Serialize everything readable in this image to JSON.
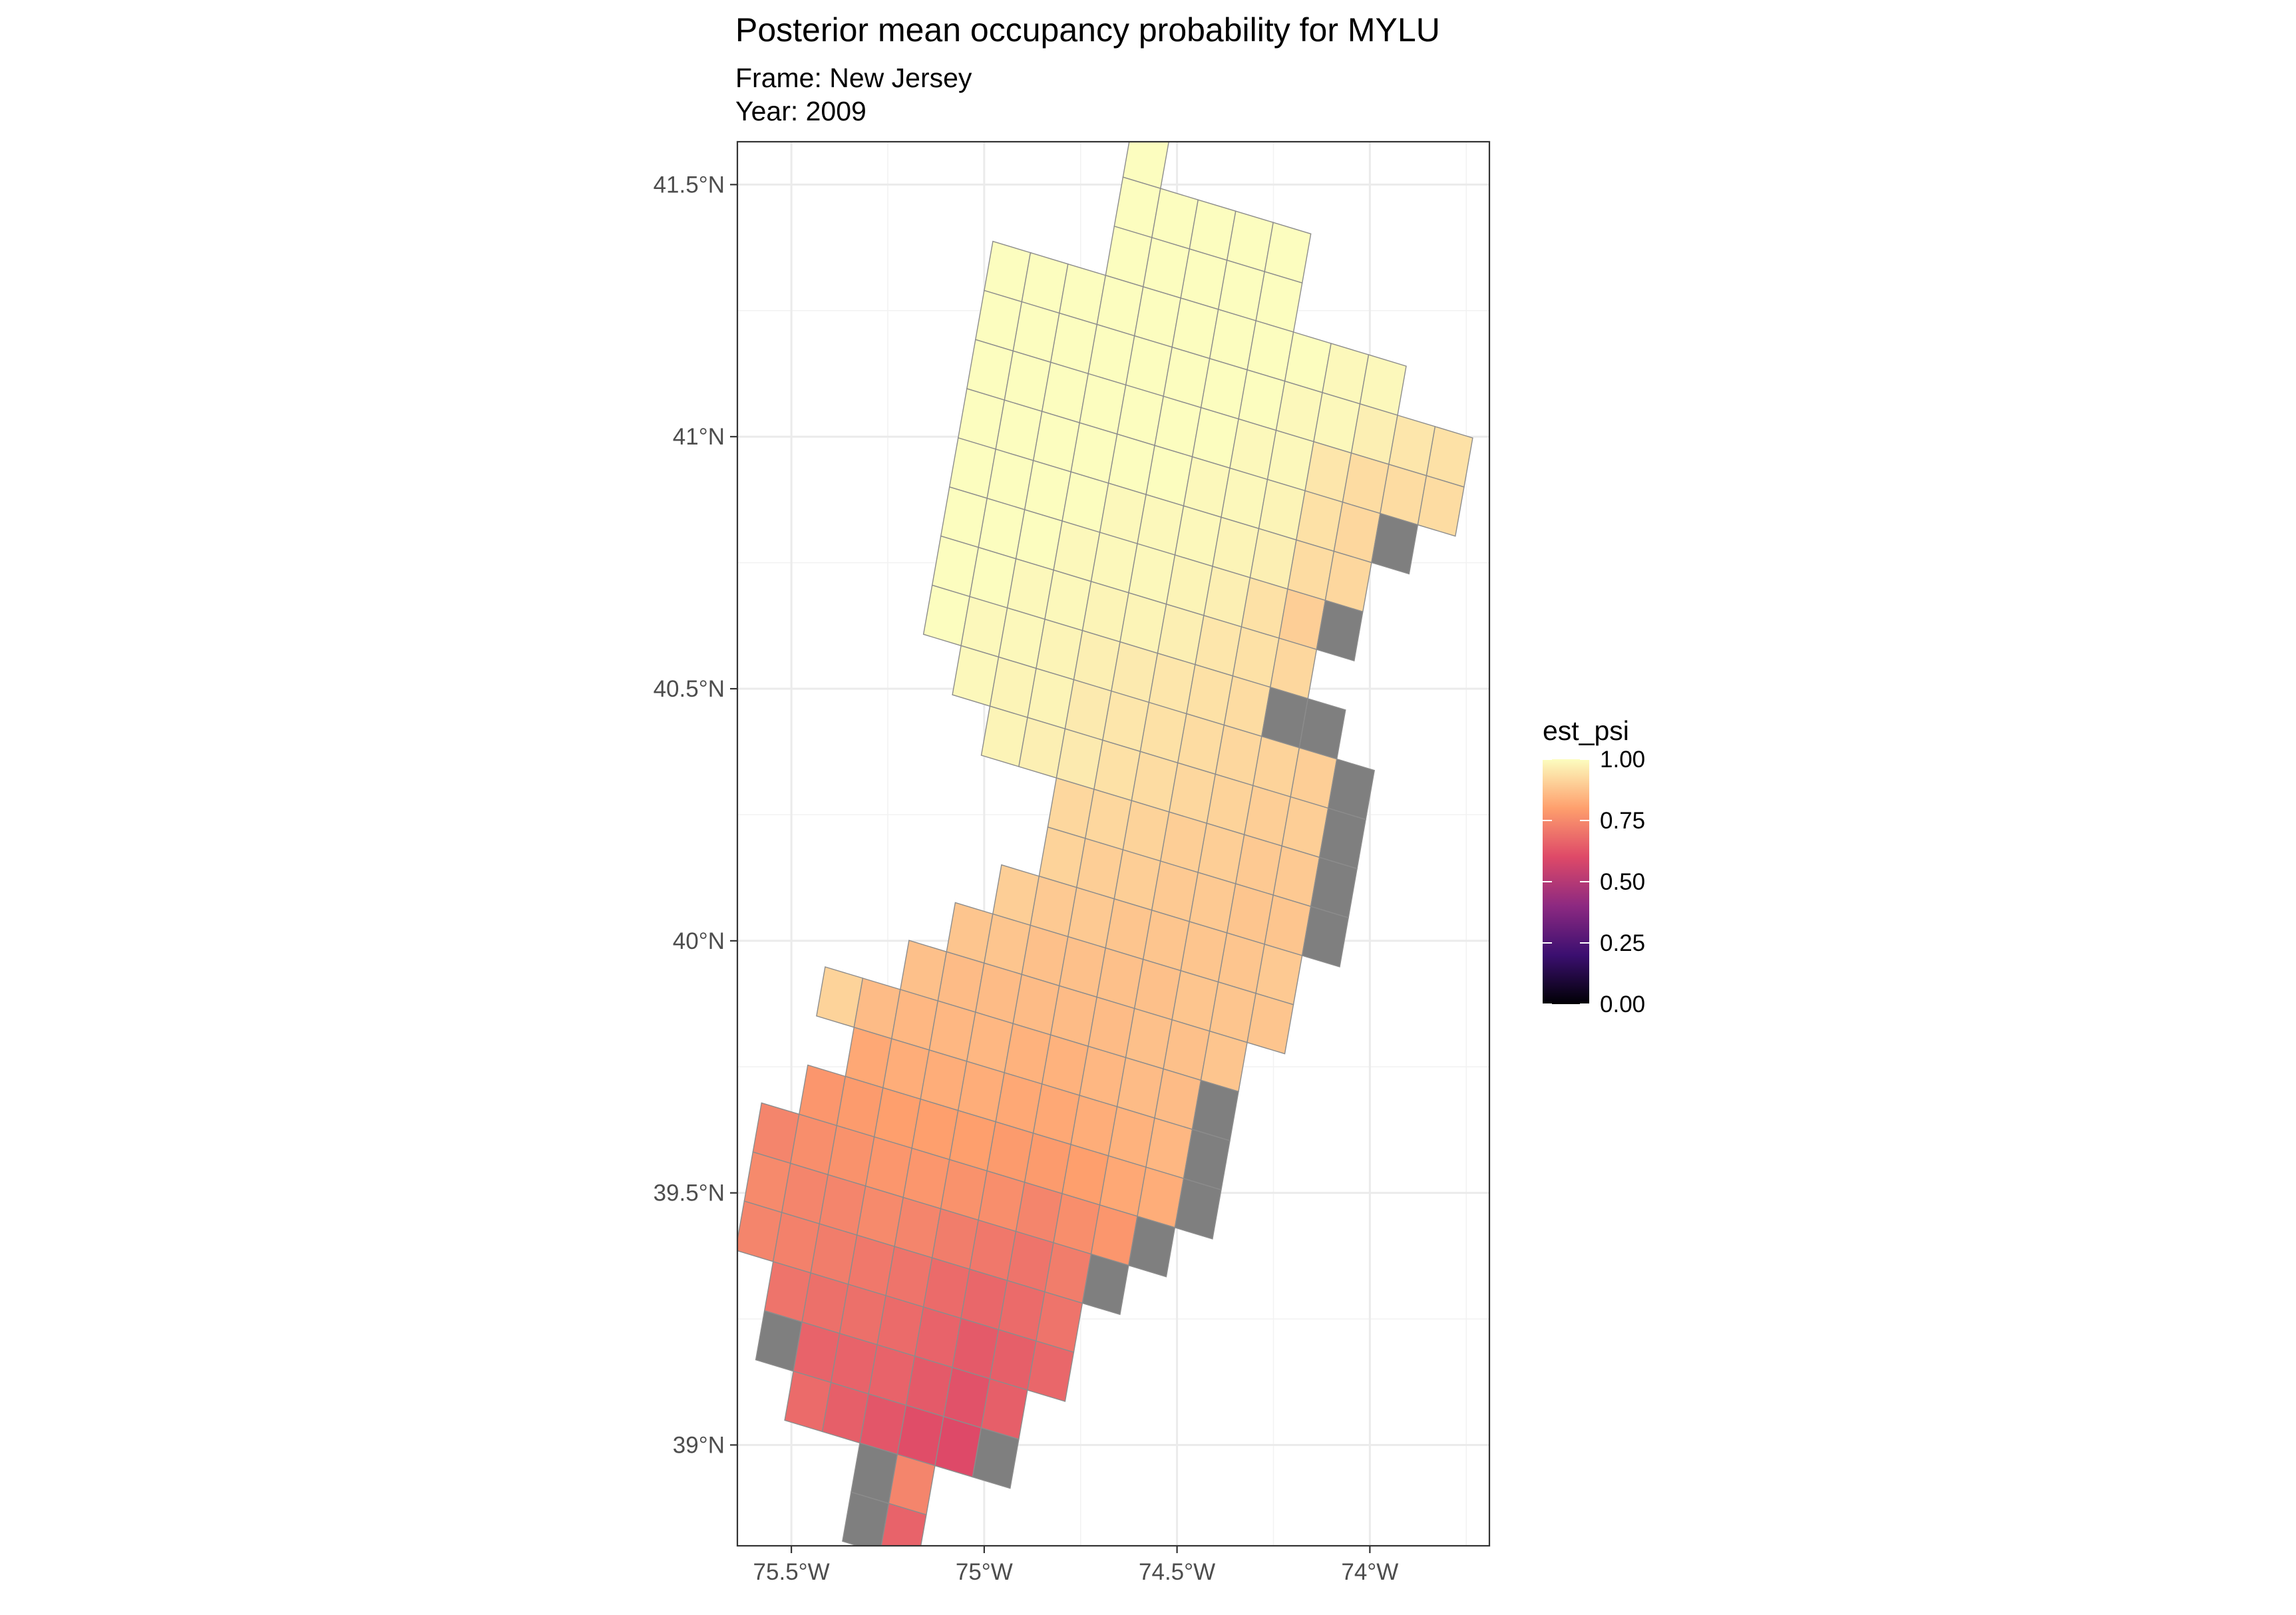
{
  "title": "Posterior mean occupancy probability for MYLU",
  "subtitle_frame": "Frame: New Jersey",
  "subtitle_year": "Year: 2009",
  "chart_data": {
    "type": "heatmap",
    "title": "Posterior mean occupancy probability for MYLU",
    "subtitle": [
      "Frame: New Jersey",
      "Year: 2009"
    ],
    "xlabel": "",
    "ylabel": "",
    "x_ticks": [
      {
        "value": -75.5,
        "label": "75.5°W"
      },
      {
        "value": -75.0,
        "label": "75°W"
      },
      {
        "value": -74.5,
        "label": "74.5°W"
      },
      {
        "value": -74.0,
        "label": "74°W"
      }
    ],
    "y_ticks": [
      {
        "value": 39.0,
        "label": "39°N"
      },
      {
        "value": 39.5,
        "label": "39.5°N"
      },
      {
        "value": 40.0,
        "label": "40°N"
      },
      {
        "value": 40.5,
        "label": "40.5°N"
      },
      {
        "value": 41.0,
        "label": "41°N"
      },
      {
        "value": 41.5,
        "label": "41.5°N"
      }
    ],
    "xlim": [
      -75.64,
      -73.69
    ],
    "ylim": [
      38.8,
      41.585
    ],
    "grid": true,
    "na_color": "#7f7f7f",
    "legend": {
      "title": "est_psi",
      "placement": "right",
      "labels": [
        "1.00",
        "0.75",
        "0.50",
        "0.25",
        "0.00"
      ],
      "values": [
        1.0,
        0.75,
        0.5,
        0.25,
        0.0
      ],
      "colormap": "magma",
      "colors": [
        "#000004",
        "#3b0f70",
        "#8c2981",
        "#de4968",
        "#fe9f6d",
        "#fcfdbf"
      ]
    },
    "cell_size_deg": 0.1,
    "grid_rotation_deg": 13,
    "grid_origin": {
      "lon": -75.0,
      "lat": 41.29
    },
    "cells": [
      [
        3,
        -4,
        1.0
      ],
      [
        3,
        -3,
        1.0
      ],
      [
        4,
        -3,
        1.0
      ],
      [
        5,
        -3,
        1.0
      ],
      [
        6,
        -3,
        1.0
      ],
      [
        7,
        -3,
        1.0
      ],
      [
        3,
        -2,
        1.0
      ],
      [
        4,
        -2,
        1.0
      ],
      [
        5,
        -2,
        1.0
      ],
      [
        6,
        -2,
        1.0
      ],
      [
        7,
        -2,
        1.0
      ],
      [
        0,
        -1,
        1.0
      ],
      [
        1,
        -1,
        1.0
      ],
      [
        2,
        -1,
        1.0
      ],
      [
        3,
        -1,
        1.0
      ],
      [
        4,
        -1,
        1.0
      ],
      [
        5,
        -1,
        1.0
      ],
      [
        6,
        -1,
        1.0
      ],
      [
        7,
        -1,
        1.0
      ],
      [
        8,
        -1,
        1.0
      ],
      [
        9,
        -1,
        0.99
      ],
      [
        10,
        -1,
        0.99
      ],
      [
        0,
        0,
        1.0
      ],
      [
        1,
        0,
        1.0
      ],
      [
        2,
        0,
        1.0
      ],
      [
        3,
        0,
        1.0
      ],
      [
        4,
        0,
        1.0
      ],
      [
        5,
        0,
        1.0
      ],
      [
        6,
        0,
        1.0
      ],
      [
        7,
        0,
        1.0
      ],
      [
        8,
        0,
        0.99
      ],
      [
        9,
        0,
        0.99
      ],
      [
        10,
        0,
        0.97
      ],
      [
        11,
        0,
        0.95
      ],
      [
        12,
        0,
        0.94
      ],
      [
        0,
        1,
        1.0
      ],
      [
        1,
        1,
        1.0
      ],
      [
        2,
        1,
        1.0
      ],
      [
        3,
        1,
        1.0
      ],
      [
        4,
        1,
        1.0
      ],
      [
        5,
        1,
        1.0
      ],
      [
        6,
        1,
        1.0
      ],
      [
        7,
        1,
        0.99
      ],
      [
        8,
        1,
        0.99
      ],
      [
        9,
        1,
        0.95
      ],
      [
        10,
        1,
        0.93
      ],
      [
        11,
        1,
        0.93
      ],
      [
        12,
        1,
        0.93
      ],
      [
        0,
        2,
        1.0
      ],
      [
        1,
        2,
        1.0
      ],
      [
        2,
        2,
        1.0
      ],
      [
        3,
        2,
        1.0
      ],
      [
        4,
        2,
        1.0
      ],
      [
        5,
        2,
        1.0
      ],
      [
        6,
        2,
        0.99
      ],
      [
        7,
        2,
        0.99
      ],
      [
        8,
        2,
        0.98
      ],
      [
        9,
        2,
        0.94
      ],
      [
        10,
        2,
        0.92
      ],
      [
        11,
        2,
        null
      ],
      [
        0,
        3,
        1.0
      ],
      [
        1,
        3,
        1.0
      ],
      [
        2,
        3,
        1.0
      ],
      [
        3,
        3,
        1.0
      ],
      [
        4,
        3,
        0.99
      ],
      [
        5,
        3,
        0.99
      ],
      [
        6,
        3,
        0.99
      ],
      [
        7,
        3,
        0.98
      ],
      [
        8,
        3,
        0.97
      ],
      [
        9,
        3,
        0.93
      ],
      [
        10,
        3,
        0.92
      ],
      [
        0,
        4,
        1.0
      ],
      [
        1,
        4,
        1.0
      ],
      [
        2,
        4,
        1.0
      ],
      [
        3,
        4,
        0.99
      ],
      [
        4,
        4,
        0.99
      ],
      [
        5,
        4,
        0.99
      ],
      [
        6,
        4,
        0.98
      ],
      [
        7,
        4,
        0.97
      ],
      [
        8,
        4,
        0.94
      ],
      [
        9,
        4,
        0.9
      ],
      [
        10,
        4,
        null
      ],
      [
        0,
        5,
        1.0
      ],
      [
        1,
        5,
        1.0
      ],
      [
        2,
        5,
        0.99
      ],
      [
        3,
        5,
        0.99
      ],
      [
        4,
        5,
        0.98
      ],
      [
        5,
        5,
        0.98
      ],
      [
        6,
        5,
        0.97
      ],
      [
        7,
        5,
        0.95
      ],
      [
        8,
        5,
        0.94
      ],
      [
        9,
        5,
        0.92
      ],
      [
        0,
        6,
        1.0
      ],
      [
        1,
        6,
        0.99
      ],
      [
        2,
        6,
        0.99
      ],
      [
        3,
        6,
        0.98
      ],
      [
        4,
        6,
        0.97
      ],
      [
        5,
        6,
        0.96
      ],
      [
        6,
        6,
        0.95
      ],
      [
        7,
        6,
        0.94
      ],
      [
        8,
        6,
        0.93
      ],
      [
        9,
        6,
        null
      ],
      [
        10,
        6,
        null
      ],
      [
        1,
        7,
        0.99
      ],
      [
        2,
        7,
        0.98
      ],
      [
        3,
        7,
        0.98
      ],
      [
        4,
        7,
        0.96
      ],
      [
        5,
        7,
        0.95
      ],
      [
        6,
        7,
        0.94
      ],
      [
        7,
        7,
        0.93
      ],
      [
        8,
        7,
        0.92
      ],
      [
        9,
        7,
        0.91
      ],
      [
        10,
        7,
        0.9
      ],
      [
        11,
        7,
        null
      ],
      [
        2,
        8,
        0.98
      ],
      [
        3,
        8,
        0.97
      ],
      [
        4,
        8,
        0.96
      ],
      [
        5,
        8,
        0.94
      ],
      [
        6,
        8,
        0.93
      ],
      [
        7,
        8,
        0.92
      ],
      [
        8,
        8,
        0.91
      ],
      [
        9,
        8,
        0.9
      ],
      [
        10,
        8,
        0.9
      ],
      [
        11,
        8,
        null
      ],
      [
        4,
        9,
        0.92
      ],
      [
        5,
        9,
        0.92
      ],
      [
        6,
        9,
        0.91
      ],
      [
        7,
        9,
        0.9
      ],
      [
        8,
        9,
        0.9
      ],
      [
        9,
        9,
        0.89
      ],
      [
        10,
        9,
        0.89
      ],
      [
        11,
        9,
        null
      ],
      [
        4,
        10,
        0.91
      ],
      [
        5,
        10,
        0.9
      ],
      [
        6,
        10,
        0.9
      ],
      [
        7,
        10,
        0.89
      ],
      [
        8,
        10,
        0.89
      ],
      [
        9,
        10,
        0.88
      ],
      [
        10,
        10,
        0.88
      ],
      [
        11,
        10,
        null
      ],
      [
        3,
        11,
        0.9
      ],
      [
        4,
        11,
        0.89
      ],
      [
        5,
        11,
        0.89
      ],
      [
        6,
        11,
        0.88
      ],
      [
        7,
        11,
        0.88
      ],
      [
        8,
        11,
        0.88
      ],
      [
        9,
        11,
        0.88
      ],
      [
        10,
        11,
        0.89
      ],
      [
        2,
        12,
        0.88
      ],
      [
        3,
        12,
        0.88
      ],
      [
        4,
        12,
        0.87
      ],
      [
        5,
        12,
        0.87
      ],
      [
        6,
        12,
        0.87
      ],
      [
        7,
        12,
        0.87
      ],
      [
        8,
        12,
        0.88
      ],
      [
        9,
        12,
        0.88
      ],
      [
        10,
        12,
        0.88
      ],
      [
        1,
        13,
        0.87
      ],
      [
        2,
        13,
        0.86
      ],
      [
        3,
        13,
        0.86
      ],
      [
        4,
        13,
        0.86
      ],
      [
        5,
        13,
        0.86
      ],
      [
        6,
        13,
        0.86
      ],
      [
        7,
        13,
        0.87
      ],
      [
        8,
        13,
        0.87
      ],
      [
        9,
        13,
        0.88
      ],
      [
        -1,
        14,
        0.91
      ],
      [
        0,
        14,
        0.86
      ],
      [
        1,
        14,
        0.85
      ],
      [
        2,
        14,
        0.85
      ],
      [
        3,
        14,
        0.85
      ],
      [
        4,
        14,
        0.84
      ],
      [
        5,
        14,
        0.84
      ],
      [
        6,
        14,
        0.85
      ],
      [
        7,
        14,
        0.86
      ],
      [
        8,
        14,
        0.86
      ],
      [
        9,
        14,
        null
      ],
      [
        0,
        15,
        0.82
      ],
      [
        1,
        15,
        0.83
      ],
      [
        2,
        15,
        0.83
      ],
      [
        3,
        15,
        0.83
      ],
      [
        4,
        15,
        0.82
      ],
      [
        5,
        15,
        0.82
      ],
      [
        6,
        15,
        0.83
      ],
      [
        7,
        15,
        0.84
      ],
      [
        8,
        15,
        0.85
      ],
      [
        9,
        15,
        null
      ],
      [
        -1,
        16,
        0.78
      ],
      [
        0,
        16,
        0.79
      ],
      [
        1,
        16,
        0.8
      ],
      [
        2,
        16,
        0.8
      ],
      [
        3,
        16,
        0.8
      ],
      [
        4,
        16,
        0.79
      ],
      [
        5,
        16,
        0.79
      ],
      [
        6,
        16,
        0.8
      ],
      [
        7,
        16,
        0.82
      ],
      [
        8,
        16,
        0.83
      ],
      [
        9,
        16,
        null
      ],
      [
        -2,
        17,
        0.74
      ],
      [
        -1,
        17,
        0.76
      ],
      [
        0,
        17,
        0.77
      ],
      [
        1,
        17,
        0.78
      ],
      [
        2,
        17,
        0.78
      ],
      [
        3,
        17,
        0.77
      ],
      [
        4,
        17,
        0.76
      ],
      [
        5,
        17,
        0.74
      ],
      [
        6,
        17,
        0.76
      ],
      [
        7,
        17,
        0.78
      ],
      [
        8,
        17,
        null
      ],
      [
        -2,
        18,
        0.75
      ],
      [
        -1,
        18,
        0.74
      ],
      [
        0,
        18,
        0.74
      ],
      [
        1,
        18,
        0.75
      ],
      [
        2,
        18,
        0.74
      ],
      [
        3,
        18,
        0.72
      ],
      [
        4,
        18,
        0.71
      ],
      [
        5,
        18,
        0.7
      ],
      [
        6,
        18,
        0.72
      ],
      [
        7,
        18,
        null
      ],
      [
        -2,
        19,
        0.74
      ],
      [
        -1,
        19,
        0.73
      ],
      [
        0,
        19,
        0.72
      ],
      [
        1,
        19,
        0.71
      ],
      [
        2,
        19,
        0.7
      ],
      [
        3,
        19,
        0.68
      ],
      [
        4,
        19,
        0.67
      ],
      [
        5,
        19,
        0.68
      ],
      [
        6,
        19,
        0.7
      ],
      [
        -1,
        20,
        0.7
      ],
      [
        0,
        20,
        0.69
      ],
      [
        1,
        20,
        0.69
      ],
      [
        2,
        20,
        0.68
      ],
      [
        3,
        20,
        0.66
      ],
      [
        4,
        20,
        0.64
      ],
      [
        5,
        20,
        0.65
      ],
      [
        6,
        20,
        0.67
      ],
      [
        -1,
        21,
        null
      ],
      [
        0,
        21,
        0.66
      ],
      [
        1,
        21,
        0.66
      ],
      [
        2,
        21,
        0.66
      ],
      [
        3,
        21,
        0.64
      ],
      [
        4,
        21,
        0.62
      ],
      [
        5,
        21,
        0.65
      ],
      [
        0,
        22,
        0.68
      ],
      [
        1,
        22,
        0.65
      ],
      [
        2,
        22,
        0.63
      ],
      [
        3,
        22,
        0.61
      ],
      [
        4,
        22,
        0.6
      ],
      [
        5,
        22,
        null
      ],
      [
        2,
        23,
        null
      ],
      [
        3,
        23,
        0.74
      ],
      [
        2,
        24,
        null
      ],
      [
        3,
        24,
        0.66
      ]
    ]
  }
}
